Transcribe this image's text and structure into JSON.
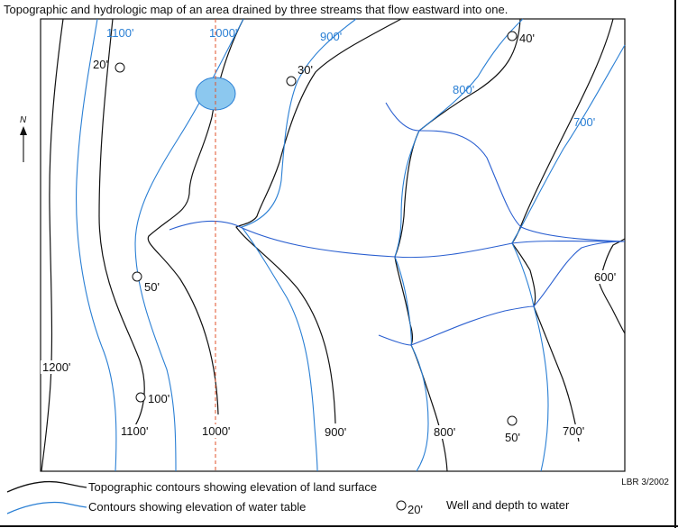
{
  "title": "Topographic and hydrologic map of an area drained by three streams that flow eastward into one.",
  "north_label": "N",
  "credit": "LBR 3/2002",
  "water_table_labels": [
    "1100'",
    "1000'",
    "900'",
    "800'",
    "700'"
  ],
  "topo_labels": [
    "1200'",
    "1100'",
    "1000'",
    "900'",
    "800'",
    "700'",
    "600'"
  ],
  "wells": [
    {
      "depth": "20'"
    },
    {
      "depth": "30'"
    },
    {
      "depth": "40'"
    },
    {
      "depth": "50'"
    },
    {
      "depth": "100'"
    },
    {
      "depth": "50'"
    }
  ],
  "legend": {
    "topo": "Topographic contours showing elevation of land surface",
    "water_table": "Contours showing elevation of water table",
    "well_sample": "20'",
    "well": "Well and depth to water"
  },
  "colors": {
    "topo": "#111111",
    "water_table": "#2a7fd4",
    "stream": "#2a5fd0",
    "lake": "#8cc8ef",
    "section_line": "#e0522a"
  }
}
